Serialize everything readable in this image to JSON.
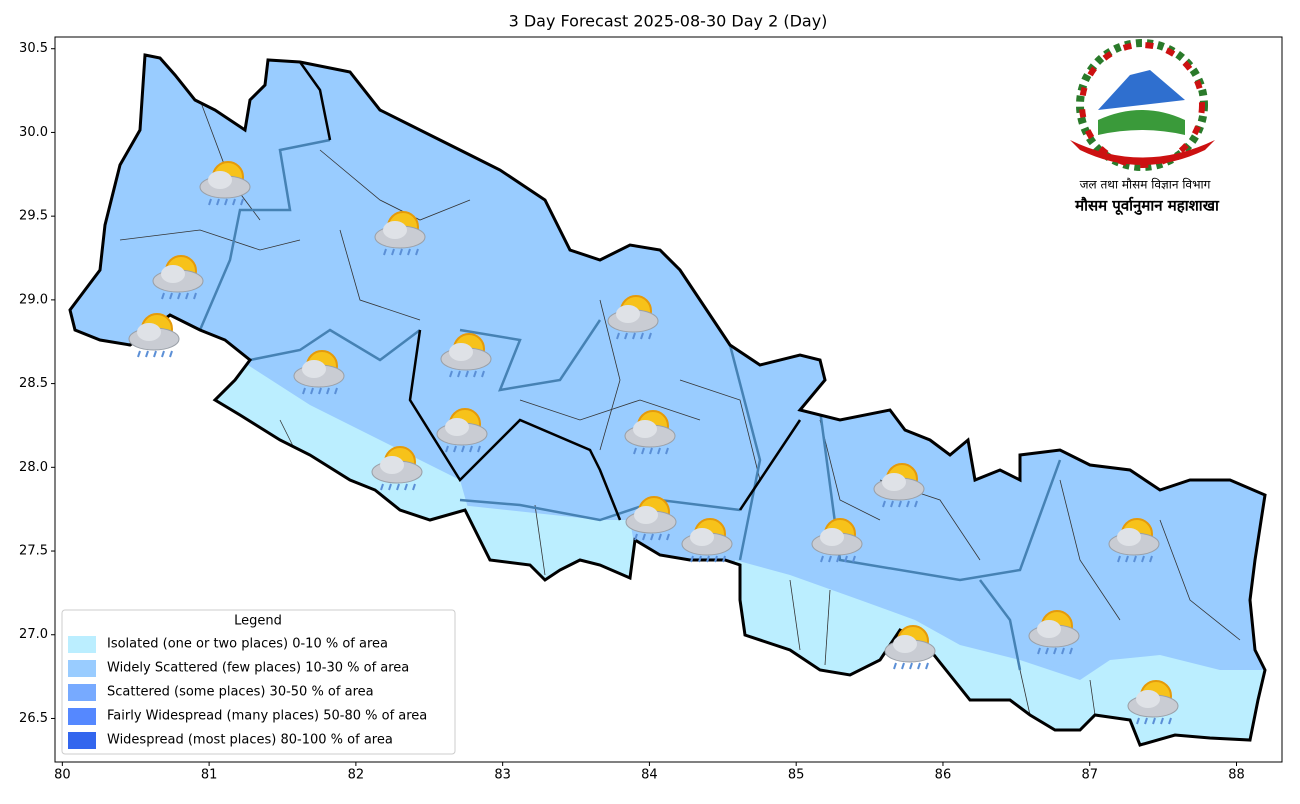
{
  "title": "3 Day Forecast 2025-08-30 Day 2 (Day)",
  "map": {
    "xlim": [
      79.95,
      88.31
    ],
    "ylim": [
      26.24,
      30.57
    ],
    "xticks": [
      80,
      81,
      82,
      83,
      84,
      85,
      86,
      87,
      88
    ],
    "yticks": [
      26.5,
      {
        "value": 27,
        "label": "27.0"
      },
      27.5,
      {
        "value": 28,
        "label": "28.0"
      },
      28.5,
      {
        "value": 29,
        "label": "29.0"
      },
      29.5,
      {
        "value": 30,
        "label": "30.0"
      },
      30.5
    ]
  },
  "legend": {
    "title": "Legend",
    "items": [
      {
        "label": "Isolated (one or two places)  0-10 % of area",
        "color": "#bbeeff"
      },
      {
        "label": "Widely Scattered (few places) 10-30 % of area",
        "color": "#99ccff"
      },
      {
        "label": "Scattered (some places) 30-50  % of area",
        "color": "#77aaff"
      },
      {
        "label": "Fairly Widespread (many places) 50-80 % of area",
        "color": "#5588ff"
      },
      {
        "label": "Widespread (most places) 80-100 % of area",
        "color": "#3366ee"
      }
    ]
  },
  "logo": {
    "line1": "जल तथा मौसम विज्ञान विभाग",
    "line2": "मौसम पूर्वानुमान महाशाखा"
  }
}
